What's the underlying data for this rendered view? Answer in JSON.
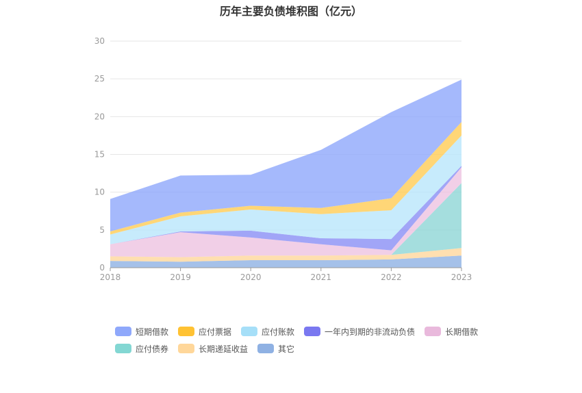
{
  "chart_data": {
    "type": "area",
    "stacked": true,
    "title": "历年主要负债堆积图（亿元）",
    "xlabel": "",
    "ylabel": "",
    "x": [
      "2018",
      "2019",
      "2020",
      "2021",
      "2022",
      "2023"
    ],
    "ylim": [
      0,
      30
    ],
    "yticks": [
      0,
      5,
      10,
      15,
      20,
      25,
      30
    ],
    "grid": true,
    "legend_position": "bottom",
    "series": [
      {
        "name": "其它",
        "color": "#8fb1e3",
        "values": [
          0.9,
          0.8,
          1.0,
          1.0,
          1.1,
          1.6
        ]
      },
      {
        "name": "长期递延收益",
        "color": "#ffd79c",
        "values": [
          0.6,
          0.6,
          0.6,
          0.6,
          0.6,
          1.0
        ]
      },
      {
        "name": "应付债券",
        "color": "#8fd6d6",
        "values": [
          0.0,
          0.0,
          0.0,
          0.0,
          0.0,
          8.6
        ]
      },
      {
        "name": "长期借款",
        "color": "#eec3e1",
        "values": [
          1.6,
          3.3,
          2.4,
          1.5,
          0.6,
          2.1
        ]
      },
      {
        "name": "一年内到期的非流动负债",
        "color": "#8a8ef5",
        "values": [
          0.0,
          0.1,
          0.9,
          0.8,
          1.5,
          0.2
        ]
      },
      {
        "name": "应付账款",
        "color": "#b9e6fb",
        "values": [
          1.3,
          2.0,
          2.8,
          3.2,
          3.8,
          4.0
        ]
      },
      {
        "name": "应付票据",
        "color": "#ffcc55",
        "values": [
          0.4,
          0.5,
          0.5,
          0.8,
          1.6,
          1.8
        ]
      },
      {
        "name": "短期借款",
        "color": "#8fa8fb",
        "values": [
          4.3,
          4.9,
          4.1,
          7.7,
          11.4,
          5.6
        ]
      }
    ]
  },
  "legend": {
    "items": [
      {
        "name": "短期借款",
        "color": "#8fa8fb"
      },
      {
        "name": "应付票据",
        "color": "#ffc233"
      },
      {
        "name": "应付账款",
        "color": "#a6dff8"
      },
      {
        "name": "一年内到期的非流动负债",
        "color": "#7a78f0"
      },
      {
        "name": "长期借款",
        "color": "#e9b9dc"
      },
      {
        "name": "应付债券",
        "color": "#83d7d3"
      },
      {
        "name": "长期递延收益",
        "color": "#ffd79a"
      },
      {
        "name": "其它",
        "color": "#8fb1e3"
      }
    ]
  }
}
